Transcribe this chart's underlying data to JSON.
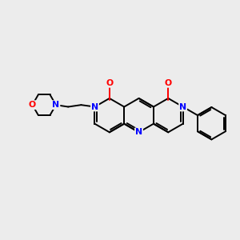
{
  "background_color": "#ececec",
  "bond_color": "#000000",
  "bond_width": 1.4,
  "N_color": "#0000ff",
  "O_color": "#ff0000",
  "font_size": 7.8,
  "fig_size": [
    3.0,
    3.0
  ],
  "dpi": 100,
  "xlim": [
    0,
    10
  ],
  "ylim": [
    0,
    10
  ]
}
